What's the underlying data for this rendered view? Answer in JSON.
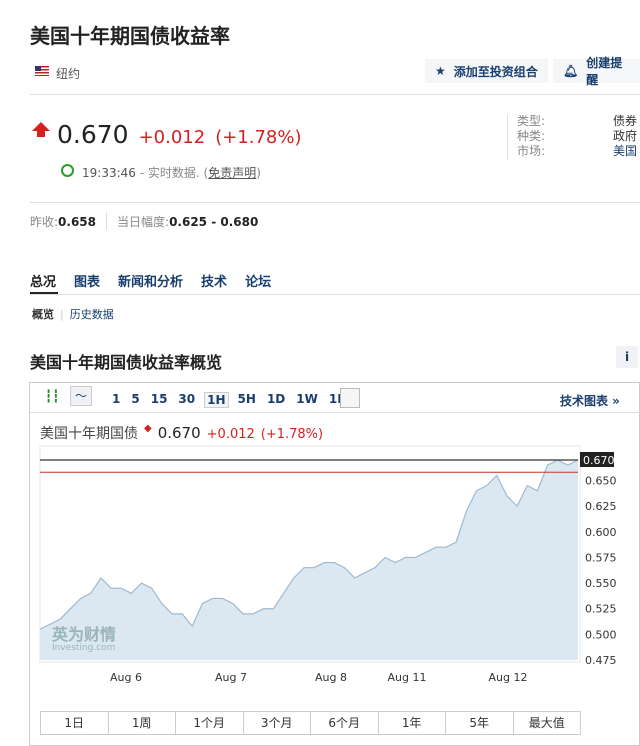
{
  "title": "美国十年期国债收益率",
  "exchange": "纽约",
  "buttons": {
    "portfolio": "添加至投资组合",
    "alert": "创建提醒"
  },
  "quote": {
    "price": "0.670",
    "change": "+0.012",
    "change_pct": "(+1.78%)",
    "time": "19:33:46",
    "realtime": "- 实时数据. (",
    "disclaimer": "免责声明",
    "close_paren": ")"
  },
  "meta": [
    {
      "label": "类型:",
      "value": "债券"
    },
    {
      "label": "种类:",
      "value": "政府"
    },
    {
      "label": "市场:",
      "value": "美国"
    }
  ],
  "prev_close_label": "昨收:",
  "prev_close": "0.658",
  "day_range_label": "当日幅度:",
  "day_range": "0.625 - 0.680",
  "tabs": [
    "总况",
    "图表",
    "新闻和分析",
    "技术",
    "论坛"
  ],
  "subtabs": [
    "概览",
    "历史数据"
  ],
  "section_title": "美国十年期国债收益率概览",
  "toolbar": {
    "intervals": [
      "1",
      "5",
      "15",
      "30",
      "1H",
      "5H",
      "1D",
      "1W",
      "1M"
    ],
    "active": "1H",
    "tech_chart": "技术图表 »"
  },
  "chart_header": {
    "name": "美国十年期国债",
    "price": "0.670",
    "change": "+0.012",
    "pct": "(+1.78%)"
  },
  "ranges": [
    "1日",
    "1周",
    "1个月",
    "3个月",
    "6个月",
    "1年",
    "5年",
    "最大值"
  ],
  "colors": {
    "accent": "#1a3f6f",
    "down_up": "#d61f1f",
    "area": "#dbe7f1",
    "line": "#9fb9cf"
  },
  "chart_data": {
    "type": "area",
    "ylim": [
      0.475,
      0.67
    ],
    "yticks": [
      "0.650",
      "0.625",
      "0.600",
      "0.575",
      "0.550",
      "0.525",
      "0.500",
      "0.475"
    ],
    "last_label": "0.670",
    "prev_close": 0.658,
    "xticks": [
      "Aug 6",
      "Aug 7",
      "Aug 8",
      "Aug 11",
      "Aug 12"
    ],
    "values": [
      0.505,
      0.51,
      0.515,
      0.525,
      0.535,
      0.54,
      0.555,
      0.545,
      0.545,
      0.54,
      0.55,
      0.545,
      0.53,
      0.52,
      0.52,
      0.508,
      0.53,
      0.535,
      0.535,
      0.53,
      0.52,
      0.52,
      0.525,
      0.525,
      0.54,
      0.555,
      0.565,
      0.565,
      0.57,
      0.57,
      0.565,
      0.555,
      0.56,
      0.565,
      0.575,
      0.57,
      0.575,
      0.575,
      0.58,
      0.585,
      0.585,
      0.59,
      0.62,
      0.64,
      0.645,
      0.655,
      0.635,
      0.625,
      0.645,
      0.64,
      0.665,
      0.67,
      0.665,
      0.67
    ]
  }
}
